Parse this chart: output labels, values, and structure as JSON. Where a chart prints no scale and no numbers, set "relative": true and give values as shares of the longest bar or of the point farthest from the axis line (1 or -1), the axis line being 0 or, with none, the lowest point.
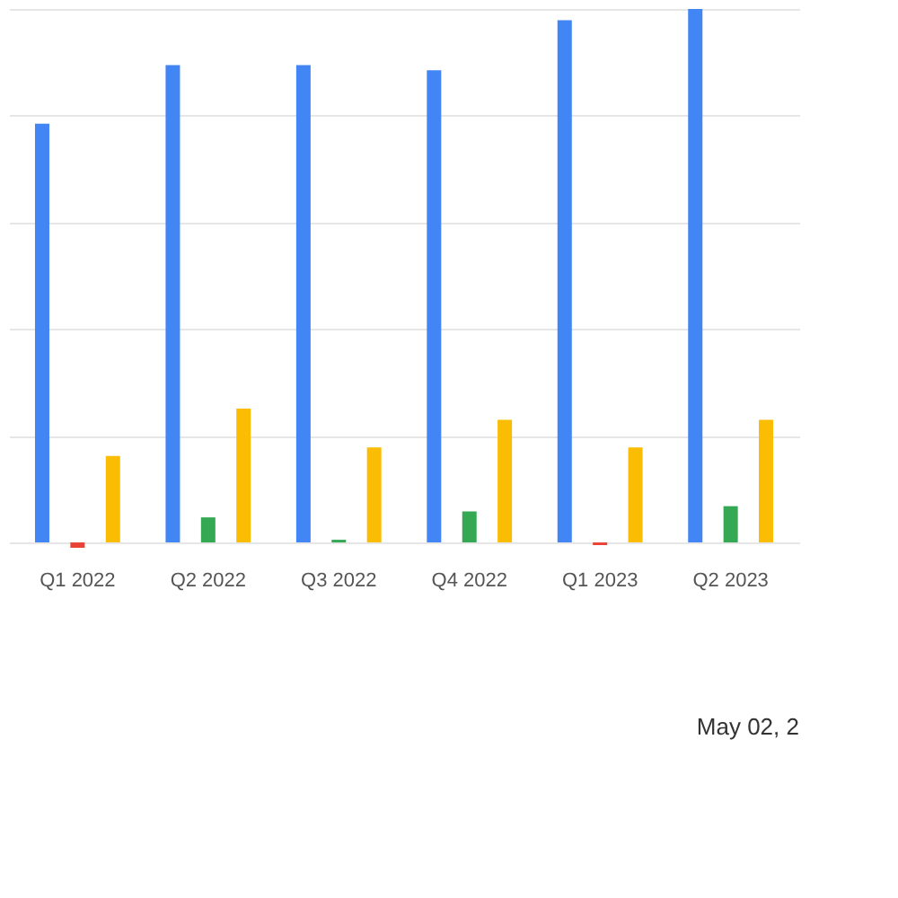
{
  "chart_data": {
    "type": "bar",
    "relative": true,
    "grid": "y",
    "categories": [
      "Q1 2022",
      "Q2 2022",
      "Q3 2022",
      "Q4 2022",
      "Q1 2023",
      "Q2 2023"
    ],
    "series": [
      {
        "color": "#4285f4",
        "values": [
          0.785,
          0.895,
          0.895,
          0.885,
          0.979,
          1
        ]
      },
      {
        "colors": [
          "#ea4335",
          "#34a853",
          "#34a853",
          "#34a853",
          "#ea4335",
          "#34a853"
        ],
        "values": [
          -0.01,
          0.047,
          0.005,
          0.058,
          -0.005,
          0.068
        ]
      },
      {
        "color": "#fbbc04",
        "values": [
          0.162,
          0.251,
          0.178,
          0.23,
          0.178,
          0.23
        ]
      }
    ],
    "annotations": [
      "May 02, 2"
    ]
  }
}
